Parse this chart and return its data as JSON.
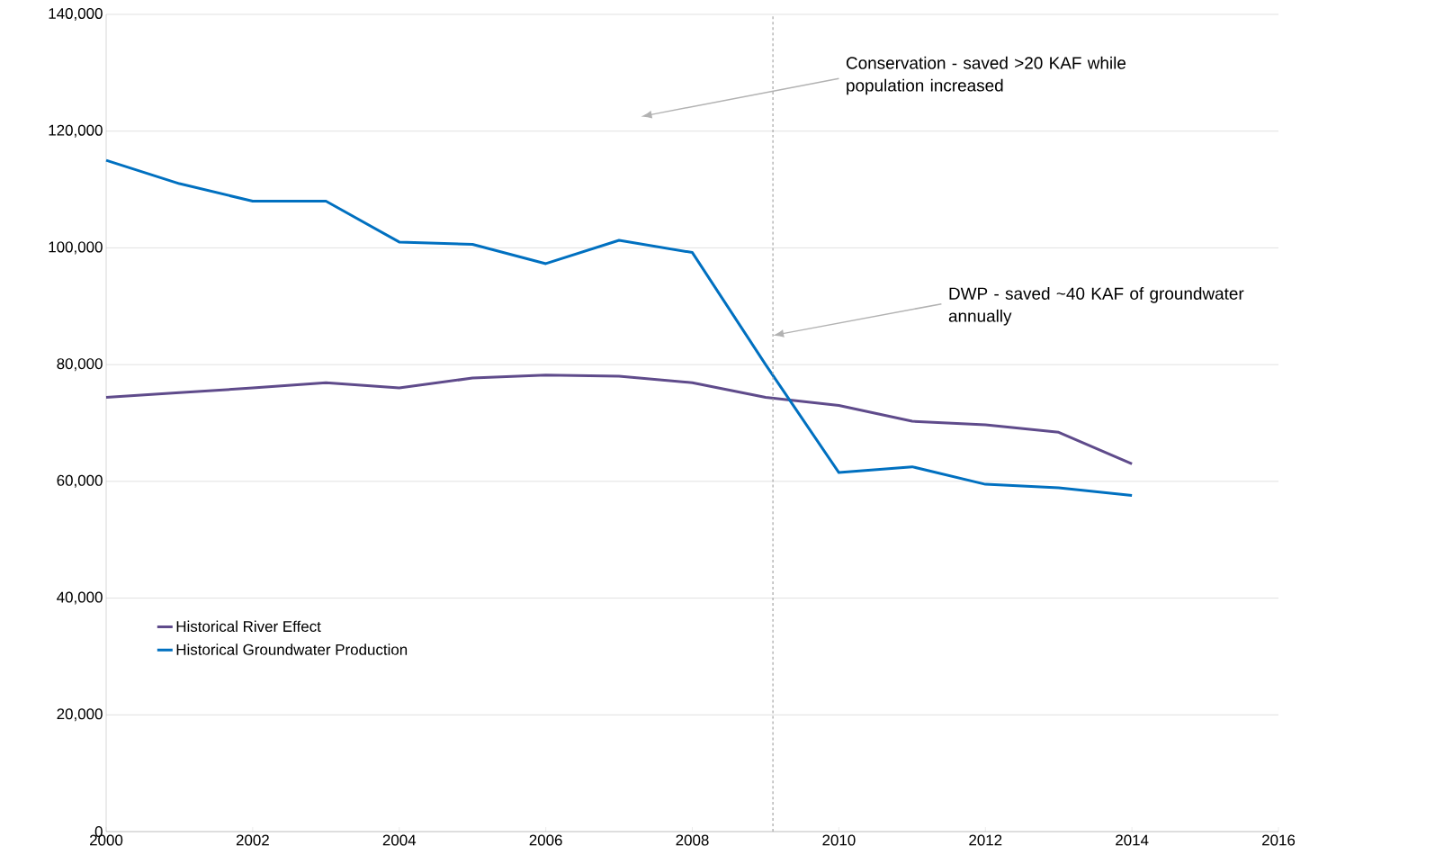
{
  "chart_data": {
    "type": "line",
    "x": [
      2000,
      2001,
      2002,
      2003,
      2004,
      2005,
      2006,
      2007,
      2008,
      2009,
      2010,
      2011,
      2012,
      2013,
      2014
    ],
    "series": [
      {
        "name": "Historical River Effect",
        "color": "#5f4b8b",
        "values": [
          74400,
          75200,
          76000,
          76900,
          76000,
          77700,
          78200,
          78000,
          76900,
          74400,
          73000,
          70300,
          69700,
          68400,
          63000
        ]
      },
      {
        "name": "Historical Groundwater Production",
        "color": "#0070c0",
        "values": [
          115000,
          111000,
          108000,
          108000,
          101000,
          100600,
          97300,
          101300,
          99200,
          80000,
          61500,
          62500,
          59500,
          58900,
          57600
        ]
      }
    ],
    "xlim": [
      2000,
      2016
    ],
    "xticks": [
      2000,
      2002,
      2004,
      2006,
      2008,
      2010,
      2012,
      2014,
      2016
    ],
    "ylim": [
      0,
      140000
    ],
    "yticks": [
      {
        "value": 0,
        "label": "0"
      },
      {
        "value": 20000,
        "label": "20,000"
      },
      {
        "value": 40000,
        "label": "40,000"
      },
      {
        "value": 60000,
        "label": "60,000"
      },
      {
        "value": 80000,
        "label": "80,000"
      },
      {
        "value": 100000,
        "label": "100,000"
      },
      {
        "value": 120000,
        "label": "120,000"
      },
      {
        "value": 140000,
        "label": "140,000"
      }
    ],
    "grid": "y",
    "legend": "bottom left",
    "marker": "none",
    "line_style": "solid",
    "ref_lines": [
      {
        "axis": "x",
        "value": 2009.1,
        "color": "#a6a6a6",
        "line_style": "dashed"
      }
    ],
    "annotations": [
      "Conservation - saved >20 KAF while population increased",
      "DWP - saved ~40 KAF of groundwater annually"
    ]
  }
}
